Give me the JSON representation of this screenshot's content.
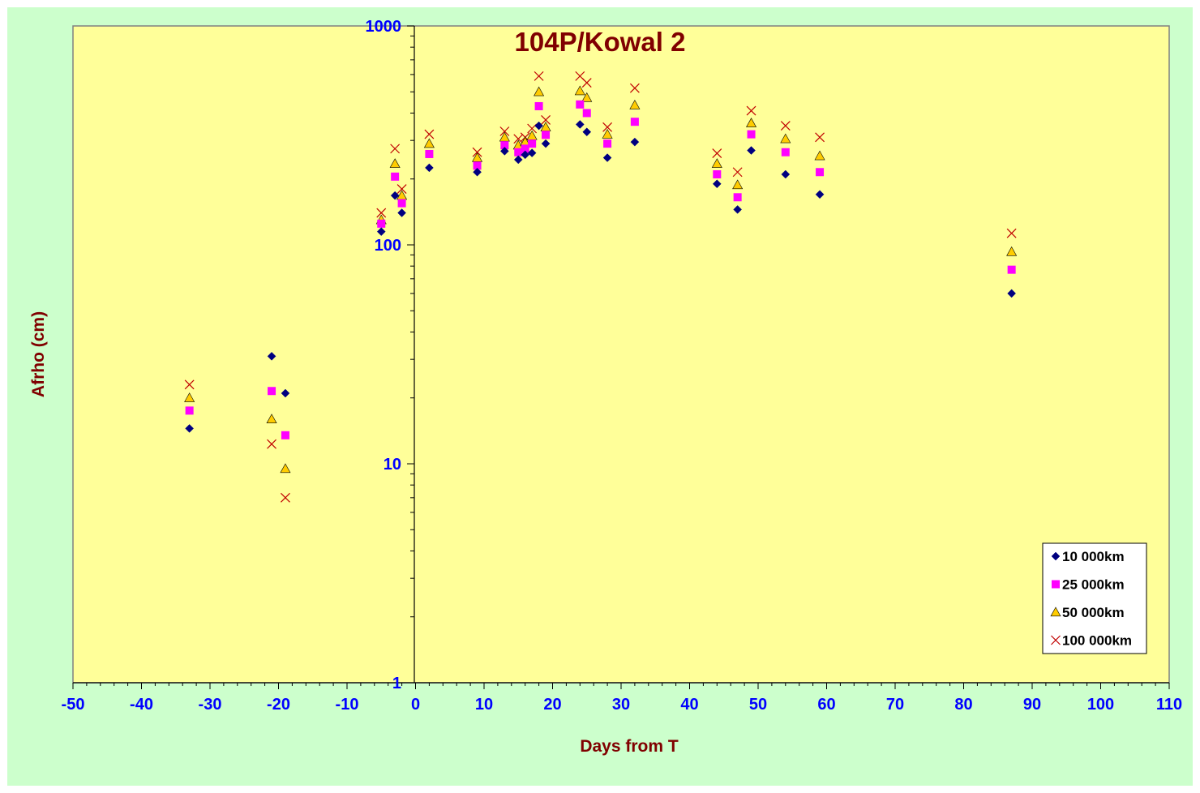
{
  "chart_data": {
    "type": "scatter",
    "title": "104P/Kowal 2",
    "xlabel": "Days from T",
    "ylabel": "Afrho (cm)",
    "xlim": [
      -50,
      110
    ],
    "ylim": [
      1,
      1000
    ],
    "yscale": "log",
    "x_ticks": [
      -50,
      -40,
      -30,
      -20,
      -10,
      0,
      10,
      20,
      30,
      40,
      50,
      60,
      70,
      80,
      90,
      100,
      110
    ],
    "x_tick_labels": [
      "-50",
      "-40",
      "-30",
      "-20",
      "-10",
      "0",
      "10",
      "20",
      "30",
      "40",
      "50",
      "60",
      "70",
      "80",
      "90",
      "100",
      "110"
    ],
    "y_ticks": [
      1,
      10,
      100,
      1000
    ],
    "y_tick_labels": [
      "1",
      "10",
      "100",
      "1000"
    ],
    "grid": false,
    "legend_position": "bottom-right",
    "colors": {
      "outer_background": "#ccffcc",
      "plot_background": "#ffff99",
      "tick_label": "#0000ff",
      "axis_title": "#800000",
      "title": "#800000"
    },
    "series": [
      {
        "name": "10 000km",
        "marker": "diamond",
        "color": "#000080",
        "points": [
          [
            -33,
            14.5
          ],
          [
            -21,
            31
          ],
          [
            -19,
            21
          ],
          [
            -5,
            115
          ],
          [
            -3,
            168
          ],
          [
            -2,
            140
          ],
          [
            2,
            225
          ],
          [
            9,
            215
          ],
          [
            13,
            268
          ],
          [
            15,
            245
          ],
          [
            16,
            258
          ],
          [
            17,
            263
          ],
          [
            18,
            350
          ],
          [
            19,
            290
          ],
          [
            24,
            355
          ],
          [
            25,
            328
          ],
          [
            28,
            250
          ],
          [
            32,
            295
          ],
          [
            44,
            190
          ],
          [
            47,
            145
          ],
          [
            49,
            270
          ],
          [
            54,
            210
          ],
          [
            59,
            170
          ],
          [
            87,
            60
          ]
        ]
      },
      {
        "name": "25 000km",
        "marker": "square",
        "color": "#ff00ff",
        "points": [
          [
            -33,
            17.5
          ],
          [
            -21,
            21.5
          ],
          [
            -19,
            13.5
          ],
          [
            -5,
            125
          ],
          [
            -3,
            205
          ],
          [
            -2,
            155
          ],
          [
            2,
            260
          ],
          [
            9,
            230
          ],
          [
            13,
            285
          ],
          [
            15,
            265
          ],
          [
            16,
            275
          ],
          [
            17,
            290
          ],
          [
            18,
            430
          ],
          [
            19,
            318
          ],
          [
            24,
            438
          ],
          [
            25,
            400
          ],
          [
            28,
            290
          ],
          [
            32,
            365
          ],
          [
            44,
            210
          ],
          [
            47,
            165
          ],
          [
            49,
            320
          ],
          [
            54,
            265
          ],
          [
            59,
            215
          ],
          [
            87,
            77
          ]
        ]
      },
      {
        "name": "50 000km",
        "marker": "triangle",
        "color": "#ffcc00",
        "points": [
          [
            -33,
            20
          ],
          [
            -21,
            16
          ],
          [
            -19,
            9.5
          ],
          [
            -5,
            130
          ],
          [
            -3,
            235
          ],
          [
            -2,
            168
          ],
          [
            2,
            290
          ],
          [
            9,
            250
          ],
          [
            13,
            310
          ],
          [
            15,
            285
          ],
          [
            16,
            295
          ],
          [
            17,
            315
          ],
          [
            18,
            500
          ],
          [
            19,
            345
          ],
          [
            24,
            505
          ],
          [
            25,
            470
          ],
          [
            28,
            320
          ],
          [
            32,
            435
          ],
          [
            44,
            235
          ],
          [
            47,
            188
          ],
          [
            49,
            360
          ],
          [
            54,
            305
          ],
          [
            59,
            255
          ],
          [
            87,
            93
          ]
        ]
      },
      {
        "name": "100 000km",
        "marker": "x",
        "color": "#c00000",
        "points": [
          [
            -33,
            23
          ],
          [
            -21,
            12.3
          ],
          [
            -19,
            7
          ],
          [
            -5,
            140
          ],
          [
            -3,
            275
          ],
          [
            -2,
            180
          ],
          [
            2,
            320
          ],
          [
            9,
            265
          ],
          [
            13,
            330
          ],
          [
            15,
            305
          ],
          [
            16,
            310
          ],
          [
            17,
            340
          ],
          [
            18,
            590
          ],
          [
            19,
            372
          ],
          [
            24,
            590
          ],
          [
            25,
            550
          ],
          [
            28,
            345
          ],
          [
            32,
            520
          ],
          [
            44,
            262
          ],
          [
            47,
            215
          ],
          [
            49,
            410
          ],
          [
            54,
            350
          ],
          [
            59,
            310
          ],
          [
            87,
            113
          ]
        ]
      }
    ]
  }
}
